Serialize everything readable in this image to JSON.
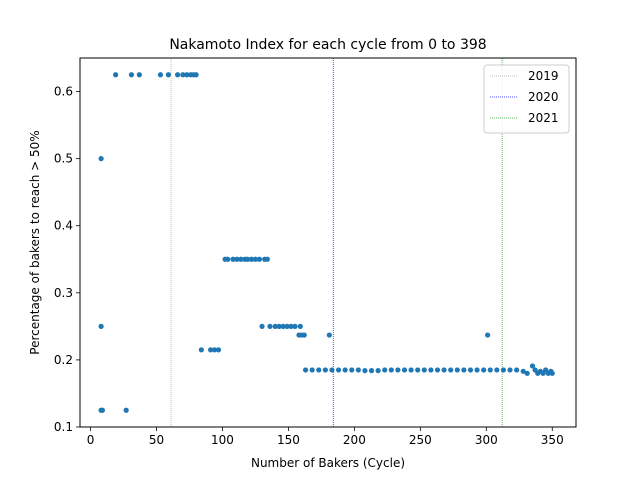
{
  "chart_data": {
    "type": "scatter",
    "title": "Nakamoto Index for each cycle from 0 to 398",
    "xlabel": "Number of Bakers (Cycle)",
    "ylabel": "Percentage of bakers to reach > 50%",
    "xlim": [
      -8,
      368
    ],
    "ylim": [
      0.1,
      0.65
    ],
    "xticks": [
      0,
      50,
      100,
      150,
      200,
      250,
      300,
      350
    ],
    "xtick_labels": [
      "0",
      "50",
      "100",
      "150",
      "200",
      "250",
      "300",
      "350"
    ],
    "yticks": [
      0.1,
      0.2,
      0.3,
      0.4,
      0.5,
      0.6
    ],
    "ytick_labels": [
      "0.1",
      "0.2",
      "0.3",
      "0.4",
      "0.5",
      "0.6"
    ],
    "grid": false,
    "legend_position": "top-right",
    "point_color": "#1f77b4",
    "vlines": [
      {
        "name": "2019",
        "x": 61,
        "color": "#a6a6a6"
      },
      {
        "name": "2020",
        "x": 184,
        "color": "#1a1aff"
      },
      {
        "name": "2021",
        "x": 312,
        "color": "#2ca02c"
      }
    ],
    "points": [
      {
        "x": 8,
        "y": 0.5
      },
      {
        "x": 8,
        "y": 0.25
      },
      {
        "x": 8,
        "y": 0.125
      },
      {
        "x": 9,
        "y": 0.125
      },
      {
        "x": 27,
        "y": 0.125
      },
      {
        "x": 19,
        "y": 0.625
      },
      {
        "x": 31,
        "y": 0.625
      },
      {
        "x": 37,
        "y": 0.625
      },
      {
        "x": 53,
        "y": 0.625
      },
      {
        "x": 59,
        "y": 0.625
      },
      {
        "x": 66,
        "y": 0.625
      },
      {
        "x": 70,
        "y": 0.625
      },
      {
        "x": 73,
        "y": 0.625
      },
      {
        "x": 76,
        "y": 0.625
      },
      {
        "x": 78,
        "y": 0.625
      },
      {
        "x": 80,
        "y": 0.625
      },
      {
        "x": 84,
        "y": 0.215
      },
      {
        "x": 91,
        "y": 0.215
      },
      {
        "x": 94,
        "y": 0.215
      },
      {
        "x": 97,
        "y": 0.215
      },
      {
        "x": 102,
        "y": 0.35
      },
      {
        "x": 104,
        "y": 0.35
      },
      {
        "x": 108,
        "y": 0.35
      },
      {
        "x": 111,
        "y": 0.35
      },
      {
        "x": 114,
        "y": 0.35
      },
      {
        "x": 117,
        "y": 0.35
      },
      {
        "x": 119,
        "y": 0.35
      },
      {
        "x": 122,
        "y": 0.35
      },
      {
        "x": 125,
        "y": 0.35
      },
      {
        "x": 128,
        "y": 0.35
      },
      {
        "x": 132,
        "y": 0.35
      },
      {
        "x": 134,
        "y": 0.35
      },
      {
        "x": 130,
        "y": 0.25
      },
      {
        "x": 136,
        "y": 0.25
      },
      {
        "x": 140,
        "y": 0.25
      },
      {
        "x": 143,
        "y": 0.25
      },
      {
        "x": 146,
        "y": 0.25
      },
      {
        "x": 149,
        "y": 0.25
      },
      {
        "x": 152,
        "y": 0.25
      },
      {
        "x": 155,
        "y": 0.25
      },
      {
        "x": 159,
        "y": 0.25
      },
      {
        "x": 158,
        "y": 0.237
      },
      {
        "x": 160,
        "y": 0.237
      },
      {
        "x": 162,
        "y": 0.237
      },
      {
        "x": 181,
        "y": 0.237
      },
      {
        "x": 301,
        "y": 0.237
      },
      {
        "x": 163,
        "y": 0.185
      },
      {
        "x": 168,
        "y": 0.185
      },
      {
        "x": 173,
        "y": 0.185
      },
      {
        "x": 178,
        "y": 0.185
      },
      {
        "x": 183,
        "y": 0.185
      },
      {
        "x": 188,
        "y": 0.185
      },
      {
        "x": 193,
        "y": 0.185
      },
      {
        "x": 198,
        "y": 0.185
      },
      {
        "x": 203,
        "y": 0.185
      },
      {
        "x": 208,
        "y": 0.184
      },
      {
        "x": 213,
        "y": 0.184
      },
      {
        "x": 218,
        "y": 0.184
      },
      {
        "x": 223,
        "y": 0.185
      },
      {
        "x": 228,
        "y": 0.185
      },
      {
        "x": 233,
        "y": 0.185
      },
      {
        "x": 238,
        "y": 0.185
      },
      {
        "x": 243,
        "y": 0.185
      },
      {
        "x": 248,
        "y": 0.185
      },
      {
        "x": 253,
        "y": 0.185
      },
      {
        "x": 258,
        "y": 0.185
      },
      {
        "x": 263,
        "y": 0.185
      },
      {
        "x": 268,
        "y": 0.185
      },
      {
        "x": 273,
        "y": 0.185
      },
      {
        "x": 278,
        "y": 0.185
      },
      {
        "x": 283,
        "y": 0.185
      },
      {
        "x": 288,
        "y": 0.185
      },
      {
        "x": 293,
        "y": 0.185
      },
      {
        "x": 298,
        "y": 0.185
      },
      {
        "x": 303,
        "y": 0.185
      },
      {
        "x": 308,
        "y": 0.185
      },
      {
        "x": 313,
        "y": 0.185
      },
      {
        "x": 318,
        "y": 0.185
      },
      {
        "x": 323,
        "y": 0.185
      },
      {
        "x": 328,
        "y": 0.183
      },
      {
        "x": 331,
        "y": 0.18
      },
      {
        "x": 335,
        "y": 0.191
      },
      {
        "x": 337,
        "y": 0.185
      },
      {
        "x": 339,
        "y": 0.18
      },
      {
        "x": 341,
        "y": 0.183
      },
      {
        "x": 343,
        "y": 0.18
      },
      {
        "x": 345,
        "y": 0.185
      },
      {
        "x": 347,
        "y": 0.18
      },
      {
        "x": 349,
        "y": 0.183
      },
      {
        "x": 350,
        "y": 0.18
      }
    ]
  }
}
